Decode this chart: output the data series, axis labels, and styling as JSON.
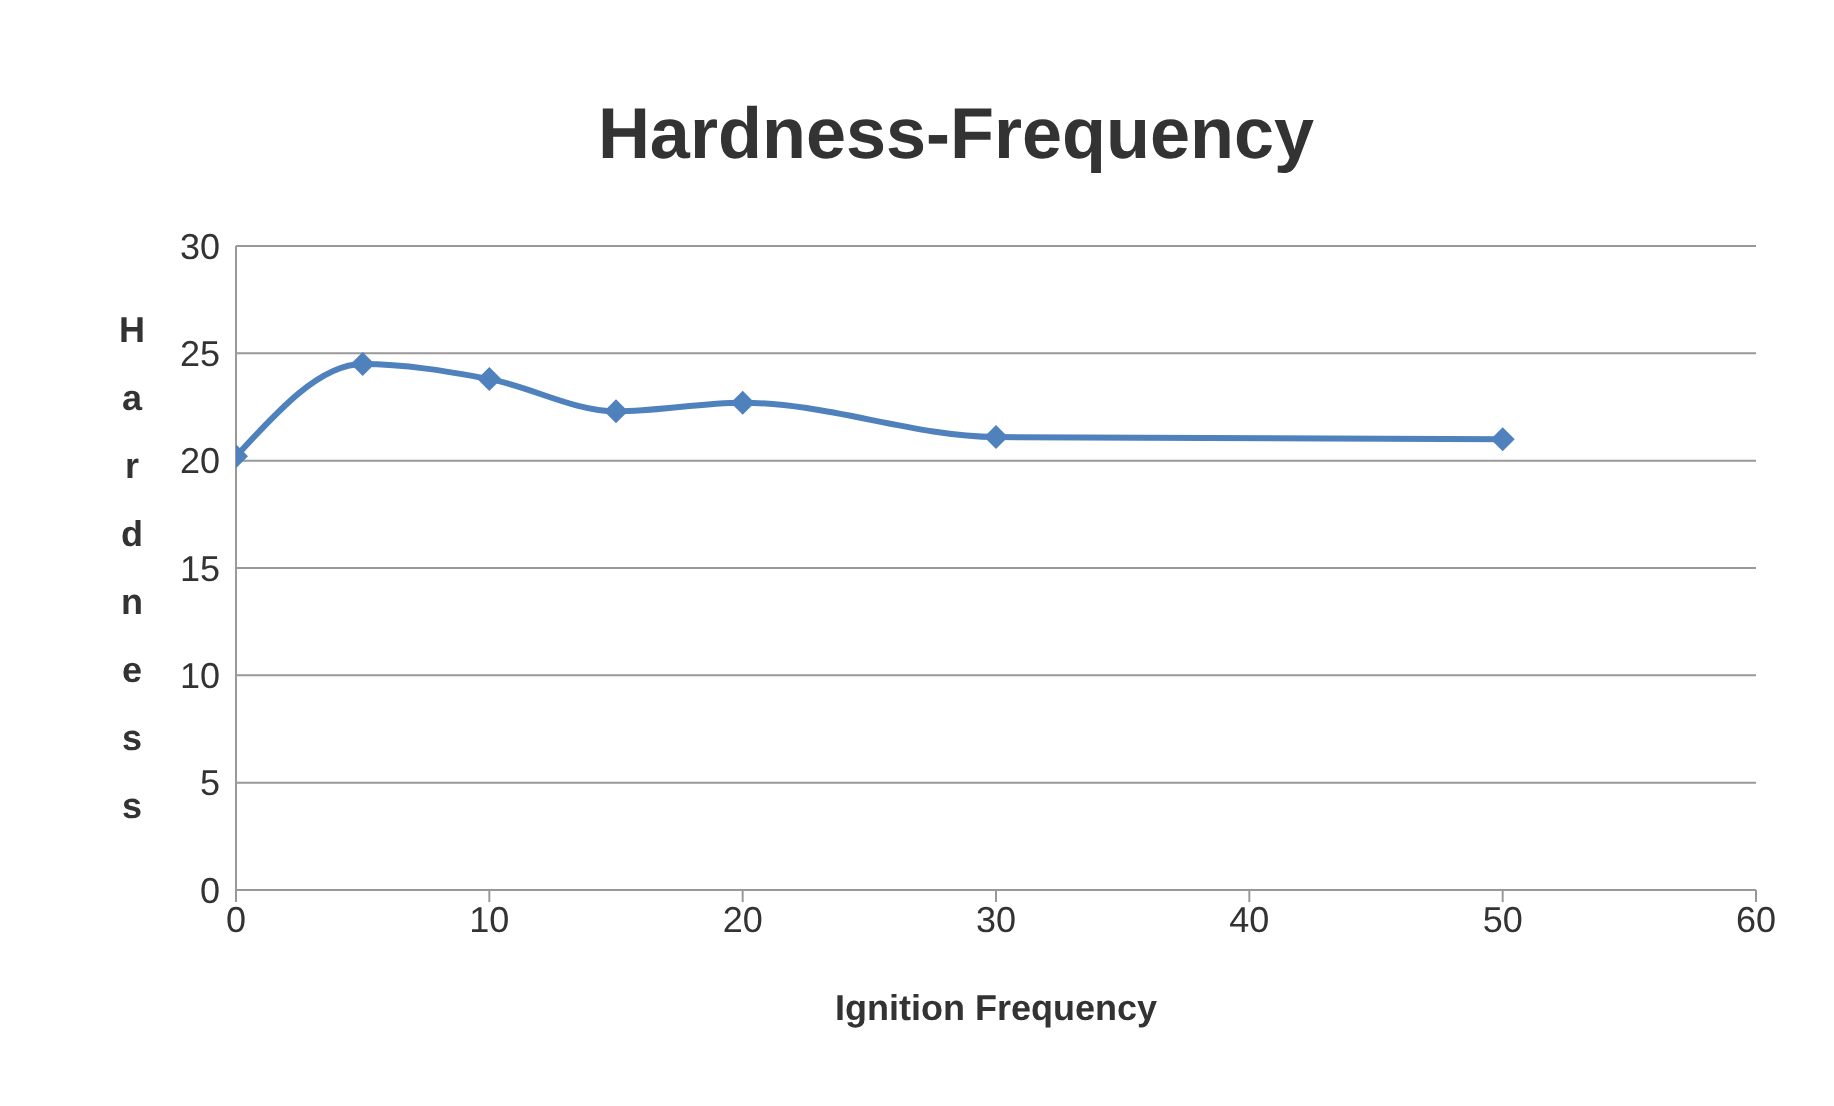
{
  "chart_data": {
    "type": "line",
    "title": "Hardness-Frequency",
    "xlabel": "Ignition Frequency",
    "ylabel": "Hardness",
    "x": [
      0,
      5,
      10,
      15,
      20,
      30,
      50
    ],
    "series": [
      {
        "color": "#4f81bd",
        "values": [
          20.2,
          24.5,
          23.8,
          22.3,
          22.7,
          21.1,
          21.0
        ]
      }
    ],
    "xlim": [
      0,
      60
    ],
    "xticks": [
      0,
      10,
      20,
      30,
      40,
      50,
      60
    ],
    "ylim": [
      0,
      30
    ],
    "yticks": [
      0,
      5,
      10,
      15,
      20,
      25,
      30
    ],
    "grid": "y",
    "marker": "diamond",
    "legend": false
  }
}
